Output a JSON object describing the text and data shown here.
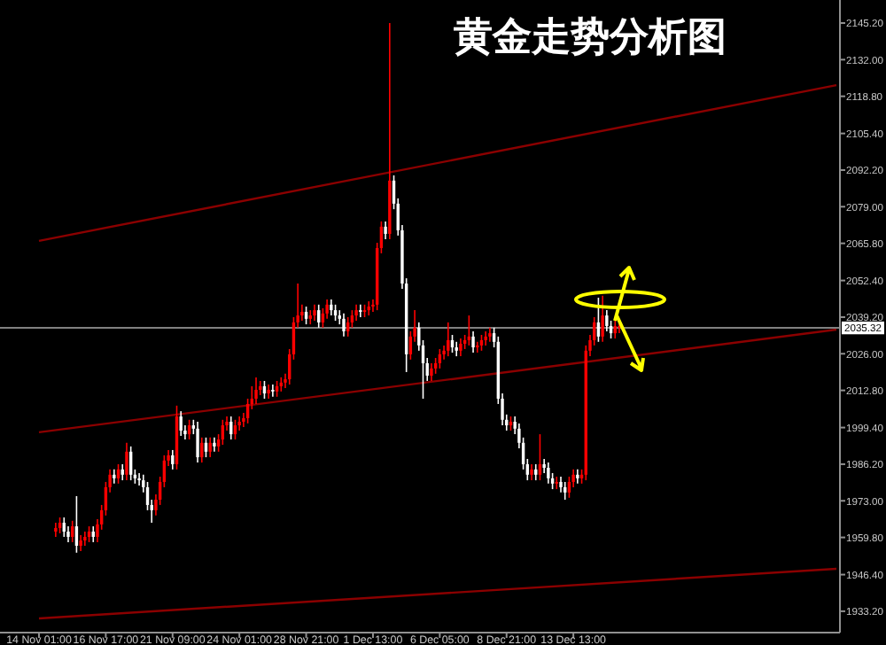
{
  "chart_data": {
    "type": "candlestick",
    "title": "黄金走势分析图",
    "categories": [
      "14 Nov 01:00",
      null,
      null,
      null,
      null,
      null,
      null,
      null,
      null,
      null,
      null,
      null,
      null,
      null,
      null,
      null,
      "16 Nov 17:00",
      null,
      null,
      null,
      null,
      null,
      null,
      null,
      null,
      null,
      null,
      null,
      null,
      null,
      null,
      null,
      "21 Nov 09:00",
      null,
      null,
      null,
      null,
      null,
      null,
      null,
      null,
      null,
      null,
      null,
      null,
      null,
      null,
      null,
      "24 Nov 01:00",
      null,
      null,
      null,
      null,
      null,
      null,
      null,
      null,
      null,
      null,
      null,
      null,
      null,
      null,
      null,
      "28 Nov 21:00",
      null,
      null,
      null,
      null,
      null,
      null,
      null,
      null,
      null,
      null,
      null,
      null,
      null,
      null,
      null,
      "1 Dec 13:00",
      null,
      null,
      null,
      null,
      null,
      null,
      null,
      null,
      null,
      null,
      null,
      null,
      null,
      null,
      null,
      "6 Dec 05:00",
      null,
      null,
      null,
      null,
      null,
      null,
      null,
      null,
      null,
      null,
      null,
      null,
      null,
      null,
      null,
      "8 Dec 21:00",
      null,
      null,
      null,
      null,
      null,
      null,
      null,
      null,
      null,
      null,
      null,
      null,
      null,
      null,
      null,
      "13 Dec 13:00",
      null,
      null,
      null,
      null,
      null,
      null,
      null,
      null,
      null,
      null,
      null,
      null,
      null,
      null,
      null,
      null,
      null,
      null,
      null,
      null,
      null,
      null,
      null,
      null,
      null,
      null,
      null,
      null,
      null,
      null,
      null,
      null,
      null,
      null,
      null,
      null,
      null,
      null,
      null,
      null,
      null,
      null,
      null,
      null,
      null,
      null,
      null,
      null,
      null,
      null,
      null,
      null,
      null,
      null,
      null,
      null,
      null,
      null,
      null,
      null,
      null,
      null,
      null
    ],
    "ohlc": [
      null,
      null,
      null,
      null,
      [
        1961.9,
        1965.1,
        1960.0,
        1963.2
      ],
      [
        1963.2,
        1967.0,
        1961.3,
        1965.1
      ],
      [
        1965.1,
        1967.0,
        1960.0,
        1961.9
      ],
      [
        1961.9,
        1963.8,
        1958.1,
        1960.0
      ],
      [
        1960.0,
        1965.8,
        1958.1,
        1963.8
      ],
      [
        1963.8,
        1974.7,
        1954.3,
        1956.8
      ],
      [
        1956.8,
        1960.6,
        1954.9,
        1958.7
      ],
      [
        1958.7,
        1961.9,
        1956.8,
        1960.0
      ],
      [
        1960.0,
        1963.8,
        1958.1,
        1961.9
      ],
      [
        1961.9,
        1963.8,
        1958.1,
        1960.0
      ],
      [
        1960.0,
        1966.4,
        1958.1,
        1964.5
      ],
      [
        1964.5,
        1971.5,
        1962.6,
        1969.6
      ],
      [
        1969.6,
        1979.8,
        1967.7,
        1977.9
      ],
      [
        1977.9,
        1984.3,
        1976.0,
        1982.4
      ],
      [
        1982.4,
        1984.3,
        1979.2,
        1981.1
      ],
      [
        1981.1,
        1986.2,
        1979.2,
        1984.3
      ],
      [
        1984.3,
        1986.2,
        1980.4,
        1982.4
      ],
      [
        1982.4,
        1993.9,
        1980.4,
        1990.7
      ],
      [
        1990.7,
        1992.6,
        1980.4,
        1982.4
      ],
      [
        1982.4,
        1984.3,
        1979.2,
        1981.1
      ],
      [
        1981.1,
        1983.0,
        1978.5,
        1980.4
      ],
      [
        1980.4,
        1982.4,
        1976.0,
        1977.9
      ],
      [
        1977.9,
        1979.8,
        1969.6,
        1971.5
      ],
      [
        1971.5,
        1973.4,
        1965.1,
        1969.6
      ],
      [
        1969.6,
        1975.3,
        1967.7,
        1973.4
      ],
      [
        1973.4,
        1981.7,
        1971.5,
        1979.8
      ],
      [
        1979.8,
        1989.4,
        1977.9,
        1987.5
      ],
      [
        1987.5,
        1991.3,
        1985.5,
        1989.4
      ],
      [
        1989.4,
        1991.3,
        1984.3,
        1986.2
      ],
      [
        1986.2,
        2007.3,
        1984.3,
        2003.4
      ],
      [
        2003.4,
        2005.3,
        1996.4,
        1998.3
      ],
      [
        1998.3,
        2000.2,
        1995.1,
        1997.0
      ],
      [
        1997.0,
        2002.2,
        1995.1,
        2000.2
      ],
      [
        2000.2,
        2002.2,
        1997.0,
        1999.0
      ],
      [
        1999.0,
        2001.5,
        1986.8,
        1988.7
      ],
      [
        1988.7,
        1995.8,
        1986.8,
        1993.9
      ],
      [
        1993.9,
        1995.8,
        1988.7,
        1990.7
      ],
      [
        1990.7,
        1995.8,
        1988.7,
        1993.9
      ],
      [
        1993.9,
        1995.8,
        1990.7,
        1992.6
      ],
      [
        1992.6,
        1997.0,
        1990.7,
        1995.1
      ],
      [
        1995.1,
        2002.2,
        1993.2,
        2000.2
      ],
      [
        2000.2,
        2003.4,
        1998.3,
        2001.5
      ],
      [
        2001.5,
        2003.4,
        1995.1,
        1997.0
      ],
      [
        1997.0,
        2002.2,
        1995.1,
        2000.2
      ],
      [
        2000.2,
        2003.4,
        1998.3,
        2001.5
      ],
      [
        2001.5,
        2004.7,
        1999.6,
        2002.8
      ],
      [
        2002.8,
        2009.8,
        2000.9,
        2007.9
      ],
      [
        2007.9,
        2014.3,
        2006.0,
        2009.8
      ],
      [
        2009.8,
        2017.5,
        2007.9,
        2013.0
      ],
      [
        2013.0,
        2016.2,
        2011.1,
        2014.3
      ],
      [
        2014.3,
        2016.2,
        2009.8,
        2011.7
      ],
      [
        2011.7,
        2014.9,
        2009.8,
        2013.0
      ],
      [
        2013.0,
        2014.9,
        2010.5,
        2012.4
      ],
      [
        2012.4,
        2016.2,
        2010.5,
        2014.3
      ],
      [
        2014.3,
        2017.5,
        2012.4,
        2015.6
      ],
      [
        2015.6,
        2018.8,
        2013.6,
        2016.8
      ],
      [
        2016.8,
        2027.7,
        2014.9,
        2025.8
      ],
      [
        2025.8,
        2039.2,
        2023.9,
        2037.3
      ],
      [
        2037.3,
        2051.3,
        2035.4,
        2039.8
      ],
      [
        2039.8,
        2043.7,
        2037.9,
        2041.1
      ],
      [
        2041.1,
        2043.0,
        2036.6,
        2038.6
      ],
      [
        2038.6,
        2041.7,
        2036.6,
        2039.8
      ],
      [
        2039.8,
        2043.7,
        2037.9,
        2041.7
      ],
      [
        2041.7,
        2043.7,
        2035.4,
        2037.3
      ],
      [
        2037.3,
        2042.4,
        2035.4,
        2040.5
      ],
      [
        2040.5,
        2045.6,
        2038.6,
        2043.7
      ],
      [
        2043.7,
        2045.6,
        2039.8,
        2041.7
      ],
      [
        2041.7,
        2043.7,
        2037.9,
        2039.8
      ],
      [
        2039.8,
        2041.7,
        2036.6,
        2038.6
      ],
      [
        2038.6,
        2040.5,
        2032.2,
        2034.1
      ],
      [
        2034.1,
        2039.2,
        2032.2,
        2037.3
      ],
      [
        2037.3,
        2041.7,
        2035.4,
        2039.8
      ],
      [
        2039.8,
        2043.7,
        2037.9,
        2041.7
      ],
      [
        2041.7,
        2043.7,
        2039.2,
        2041.1
      ],
      [
        2041.1,
        2043.7,
        2039.2,
        2041.7
      ],
      [
        2041.7,
        2044.9,
        2039.8,
        2043.0
      ],
      [
        2043.0,
        2045.6,
        2041.1,
        2043.7
      ],
      [
        2043.7,
        2066.0,
        2041.7,
        2064.1
      ],
      [
        2064.1,
        2073.7,
        2062.2,
        2071.8
      ],
      [
        2071.8,
        2073.7,
        2067.3,
        2069.2
      ],
      [
        2069.2,
        2145.2,
        2067.3,
        2088.4
      ],
      [
        2088.4,
        2090.3,
        2078.1,
        2080.1
      ],
      [
        2080.1,
        2082.0,
        2068.6,
        2070.5
      ],
      [
        2070.5,
        2072.4,
        2049.4,
        2051.3
      ],
      [
        2051.3,
        2053.2,
        2019.4,
        2025.8
      ],
      [
        2025.8,
        2034.1,
        2023.9,
        2032.2
      ],
      [
        2032.2,
        2041.7,
        2030.3,
        2035.4
      ],
      [
        2035.4,
        2037.3,
        2027.1,
        2029.0
      ],
      [
        2029.0,
        2030.9,
        2009.8,
        2022.6
      ],
      [
        2022.6,
        2024.5,
        2016.2,
        2018.1
      ],
      [
        2018.1,
        2022.6,
        2016.2,
        2020.7
      ],
      [
        2020.7,
        2024.5,
        2018.8,
        2022.6
      ],
      [
        2022.6,
        2027.7,
        2020.7,
        2025.8
      ],
      [
        2025.8,
        2029.0,
        2023.9,
        2027.1
      ],
      [
        2027.1,
        2037.3,
        2025.1,
        2030.9
      ],
      [
        2030.9,
        2032.8,
        2026.4,
        2028.3
      ],
      [
        2028.3,
        2030.3,
        2025.1,
        2027.1
      ],
      [
        2027.1,
        2031.5,
        2025.1,
        2029.6
      ],
      [
        2029.6,
        2032.8,
        2027.7,
        2030.9
      ],
      [
        2030.9,
        2039.8,
        2029.0,
        2032.2
      ],
      [
        2032.2,
        2034.1,
        2026.4,
        2028.3
      ],
      [
        2028.3,
        2030.3,
        2026.4,
        2029.0
      ],
      [
        2029.0,
        2032.8,
        2027.1,
        2030.9
      ],
      [
        2030.9,
        2034.1,
        2029.0,
        2032.2
      ],
      [
        2032.2,
        2035.4,
        2030.3,
        2033.4
      ],
      [
        2033.4,
        2035.4,
        2028.3,
        2030.3
      ],
      [
        2030.3,
        2032.2,
        2007.9,
        2009.8
      ],
      [
        2009.8,
        2011.7,
        2000.2,
        2002.2
      ],
      [
        2002.2,
        2004.1,
        1998.3,
        2000.2
      ],
      [
        2000.2,
        2003.4,
        1998.3,
        2001.5
      ],
      [
        2001.5,
        2003.4,
        1997.0,
        1999.0
      ],
      [
        1999.0,
        2000.9,
        1991.9,
        1993.9
      ],
      [
        1993.9,
        1995.8,
        1984.3,
        1986.2
      ],
      [
        1986.2,
        1988.1,
        1980.4,
        1982.4
      ],
      [
        1982.4,
        1986.2,
        1980.4,
        1984.3
      ],
      [
        1984.3,
        1986.2,
        1980.4,
        1982.4
      ],
      [
        1982.4,
        1997.0,
        1980.4,
        1986.2
      ],
      [
        1986.2,
        1988.1,
        1983.0,
        1984.9
      ],
      [
        1984.9,
        1986.8,
        1979.2,
        1981.1
      ],
      [
        1981.1,
        1983.0,
        1977.2,
        1979.2
      ],
      [
        1979.2,
        1981.7,
        1977.2,
        1979.8
      ],
      [
        1979.8,
        1981.7,
        1976.0,
        1977.9
      ],
      [
        1977.9,
        1979.8,
        1973.4,
        1976.0
      ],
      [
        1976.0,
        1981.7,
        1974.1,
        1979.8
      ],
      [
        1979.8,
        1984.3,
        1977.9,
        1982.4
      ],
      [
        1982.4,
        1984.3,
        1979.2,
        1981.1
      ],
      [
        1981.1,
        1984.3,
        1979.2,
        1982.4
      ],
      [
        1982.4,
        2029.0,
        1980.4,
        2027.1
      ],
      [
        2027.1,
        2032.8,
        2025.1,
        2030.9
      ],
      [
        2030.9,
        2039.2,
        2029.0,
        2037.3
      ],
      [
        2037.3,
        2046.2,
        2030.3,
        2032.2
      ],
      [
        2032.2,
        2046.9,
        2030.3,
        2039.8
      ],
      [
        2039.8,
        2041.7,
        2034.1,
        2036.0
      ],
      [
        2036.0,
        2037.9,
        2031.5,
        2033.4
      ],
      [
        2033.4,
        2037.9,
        2031.5,
        2036.0
      ],
      [
        2036.0,
        2037.9,
        2033.4,
        2035.3
      ],
      null,
      null,
      null,
      null,
      null,
      null,
      null,
      null,
      null,
      null,
      null,
      null,
      null,
      null,
      null,
      null,
      null,
      null,
      null,
      null,
      null,
      null,
      null,
      null,
      null,
      null,
      null,
      null,
      null,
      null,
      null,
      null,
      null,
      null,
      null,
      null,
      null,
      null,
      null,
      null,
      null,
      null,
      null,
      null,
      null,
      null,
      null,
      null,
      null,
      null,
      null,
      null
    ],
    "colors": [
      null,
      null,
      null,
      null,
      "#ff0000",
      "#ff0000",
      "#ffffff",
      "#ffffff",
      "#ff0000",
      "#ffffff",
      "#ff0000",
      "#ff0000",
      "#ff0000",
      "#ffffff",
      "#ff0000",
      "#ff0000",
      "#ff0000",
      "#ff0000",
      "#ffffff",
      "#ff0000",
      "#ffffff",
      "#ff0000",
      "#ffffff",
      "#ffffff",
      "#ffffff",
      "#ffffff",
      "#ffffff",
      "#ffffff",
      "#ff0000",
      "#ff0000",
      "#ff0000",
      "#ff0000",
      "#ffffff",
      "#ff0000",
      "#ffffff",
      "#ffffff",
      "#ff0000",
      "#ffffff",
      "#ffffff",
      "#ff0000",
      "#ffffff",
      "#ff0000",
      "#ffffff",
      "#ff0000",
      "#ff0000",
      "#ff0000",
      "#ffffff",
      "#ff0000",
      "#ff0000",
      "#ff0000",
      "#ff0000",
      "#ff0000",
      "#ff0000",
      "#ff0000",
      "#ffffff",
      "#ff0000",
      "#ffffff",
      "#ff0000",
      "#ff0000",
      "#ff0000",
      "#ff0000",
      "#ff0000",
      "#ff0000",
      "#ff0000",
      "#ffffff",
      "#ff0000",
      "#ff0000",
      "#ffffff",
      "#ff0000",
      "#ff0000",
      "#ffffff",
      "#ffffff",
      "#ffffff",
      "#ffffff",
      "#ff0000",
      "#ff0000",
      "#ff0000",
      "#ffffff",
      "#ff0000",
      "#ff0000",
      "#ff0000",
      "#ff0000",
      "#ff0000",
      "#ffffff",
      "#ff0000",
      "#ffffff",
      "#ffffff",
      "#ffffff",
      "#ffffff",
      "#ff0000",
      "#ff0000",
      "#ffffff",
      "#ffffff",
      "#ffffff",
      "#ff0000",
      "#ff0000",
      "#ff0000",
      "#ff0000",
      "#ff0000",
      "#ffffff",
      "#ffffff",
      "#ff0000",
      "#ff0000",
      "#ff0000",
      "#ffffff",
      "#ff0000",
      "#ff0000",
      "#ff0000",
      "#ff0000",
      "#ffffff",
      "#ffffff",
      "#ffffff",
      "#ffffff",
      "#ff0000",
      "#ffffff",
      "#ffffff",
      "#ffffff",
      "#ffffff",
      "#ff0000",
      "#ffffff",
      "#ff0000",
      "#ffffff",
      "#ffffff",
      "#ffffff",
      "#ff0000",
      "#ffffff",
      "#ffffff",
      "#ff0000",
      "#ff0000",
      "#ffffff",
      "#ff0000",
      "#ff0000",
      "#ff0000",
      "#ff0000",
      "#ffffff",
      "#ff0000",
      "#ffffff",
      "#ffffff",
      "#ff0000",
      "#ff0000",
      null,
      null,
      null,
      null,
      null,
      null,
      null,
      null,
      null,
      null,
      null,
      null,
      null,
      null,
      null,
      null,
      null,
      null,
      null,
      null,
      null,
      null,
      null,
      null,
      null,
      null,
      null,
      null,
      null,
      null,
      null,
      null,
      null,
      null,
      null,
      null,
      null,
      null,
      null,
      null,
      null,
      null,
      null,
      null,
      null,
      null,
      null,
      null,
      null,
      null,
      null,
      null
    ],
    "series": [
      {
        "type": "line",
        "color": "#8b0000",
        "values": [
          2066.7,
          null,
          null,
          null,
          null,
          null,
          null,
          null,
          null,
          null,
          null,
          null,
          null,
          null,
          null,
          null,
          null,
          null,
          null,
          null,
          null,
          null,
          null,
          null,
          null,
          null,
          null,
          null,
          null,
          null,
          null,
          null,
          null,
          null,
          null,
          null,
          null,
          null,
          null,
          null,
          null,
          null,
          null,
          null,
          null,
          null,
          null,
          null,
          null,
          null,
          null,
          null,
          null,
          null,
          null,
          null,
          null,
          null,
          null,
          null,
          null,
          null,
          null,
          null,
          null,
          null,
          null,
          null,
          null,
          null,
          null,
          null,
          null,
          null,
          null,
          null,
          null,
          null,
          null,
          null,
          null,
          null,
          null,
          null,
          null,
          null,
          null,
          null,
          null,
          null,
          null,
          null,
          null,
          null,
          null,
          null,
          null,
          null,
          null,
          null,
          null,
          null,
          null,
          null,
          null,
          null,
          null,
          null,
          null,
          null,
          null,
          null,
          null,
          null,
          null,
          null,
          null,
          null,
          null,
          null,
          null,
          null,
          null,
          null,
          null,
          null,
          null,
          null,
          null,
          null,
          null,
          null,
          null,
          null,
          null,
          null,
          null,
          null,
          null,
          null,
          null,
          null,
          null,
          null,
          null,
          null,
          null,
          null,
          null,
          null,
          null,
          null,
          null,
          null,
          null,
          null,
          null,
          null,
          null,
          null,
          null,
          null,
          null,
          null,
          null,
          null,
          null,
          null,
          null,
          null,
          null,
          null,
          null,
          null,
          null,
          null,
          null,
          null,
          null,
          null,
          null,
          null,
          null,
          null,
          null,
          null,
          null,
          null,
          null,
          null,
          null,
          2122.8
        ]
      },
      {
        "type": "line",
        "color": "#8b0000",
        "values": [
          1997.7,
          null,
          null,
          null,
          null,
          null,
          null,
          null,
          null,
          null,
          null,
          null,
          null,
          null,
          null,
          null,
          null,
          null,
          null,
          null,
          null,
          null,
          null,
          null,
          null,
          null,
          null,
          null,
          null,
          null,
          null,
          null,
          null,
          null,
          null,
          null,
          null,
          null,
          null,
          null,
          null,
          null,
          null,
          null,
          null,
          null,
          null,
          null,
          null,
          null,
          null,
          null,
          null,
          null,
          null,
          null,
          null,
          null,
          null,
          null,
          null,
          null,
          null,
          null,
          null,
          null,
          null,
          null,
          null,
          null,
          null,
          null,
          null,
          null,
          null,
          null,
          null,
          null,
          null,
          null,
          null,
          null,
          null,
          null,
          null,
          null,
          null,
          null,
          null,
          null,
          null,
          null,
          null,
          null,
          null,
          null,
          null,
          null,
          null,
          null,
          null,
          null,
          null,
          null,
          null,
          null,
          null,
          null,
          null,
          null,
          null,
          null,
          null,
          null,
          null,
          null,
          null,
          null,
          null,
          null,
          null,
          null,
          null,
          null,
          null,
          null,
          null,
          null,
          null,
          null,
          null,
          null,
          null,
          null,
          null,
          null,
          null,
          null,
          null,
          null,
          null,
          null,
          null,
          null,
          null,
          null,
          null,
          null,
          null,
          null,
          null,
          null,
          null,
          null,
          null,
          null,
          null,
          null,
          null,
          null,
          null,
          null,
          null,
          null,
          null,
          null,
          null,
          null,
          null,
          null,
          null,
          null,
          null,
          null,
          null,
          null,
          null,
          null,
          null,
          null,
          null,
          null,
          null,
          null,
          null,
          null,
          null,
          null,
          null,
          null,
          null,
          2034.7
        ]
      },
      {
        "type": "line",
        "color": "#8b0000",
        "values": [
          1930.6,
          null,
          null,
          null,
          null,
          null,
          null,
          null,
          null,
          null,
          null,
          null,
          null,
          null,
          null,
          null,
          null,
          null,
          null,
          null,
          null,
          null,
          null,
          null,
          null,
          null,
          null,
          null,
          null,
          null,
          null,
          null,
          null,
          null,
          null,
          null,
          null,
          null,
          null,
          null,
          null,
          null,
          null,
          null,
          null,
          null,
          null,
          null,
          null,
          null,
          null,
          null,
          null,
          null,
          null,
          null,
          null,
          null,
          null,
          null,
          null,
          null,
          null,
          null,
          null,
          null,
          null,
          null,
          null,
          null,
          null,
          null,
          null,
          null,
          null,
          null,
          null,
          null,
          null,
          null,
          null,
          null,
          null,
          null,
          null,
          null,
          null,
          null,
          null,
          null,
          null,
          null,
          null,
          null,
          null,
          null,
          null,
          null,
          null,
          null,
          null,
          null,
          null,
          null,
          null,
          null,
          null,
          null,
          null,
          null,
          null,
          null,
          null,
          null,
          null,
          null,
          null,
          null,
          null,
          null,
          null,
          null,
          null,
          null,
          null,
          null,
          null,
          null,
          null,
          null,
          null,
          null,
          null,
          null,
          null,
          null,
          null,
          null,
          null,
          null,
          null,
          null,
          null,
          null,
          null,
          null,
          null,
          null,
          null,
          null,
          null,
          null,
          null,
          null,
          null,
          null,
          null,
          null,
          null,
          null,
          null,
          null,
          null,
          null,
          null,
          null,
          null,
          null,
          null,
          null,
          null,
          null,
          null,
          null,
          null,
          null,
          null,
          null,
          null,
          null,
          null,
          null,
          null,
          null,
          null,
          null,
          null,
          null,
          null,
          null,
          null,
          1948.5
        ]
      }
    ],
    "ref_lines": [
      {
        "axis": "y",
        "value": 2035.32,
        "label": "2035.32",
        "color": "#808080"
      }
    ],
    "ylim": [
      1925.5,
      2153.5
    ],
    "yticks": [
      {
        "value": 2145.2,
        "label": "2145.20"
      },
      {
        "value": 2132.0,
        "label": "2132.00"
      },
      {
        "value": 2118.8,
        "label": "2118.80"
      },
      {
        "value": 2105.4,
        "label": "2105.40"
      },
      {
        "value": 2092.2,
        "label": "2092.20"
      },
      {
        "value": 2079.0,
        "label": "2079.00"
      },
      {
        "value": 2065.8,
        "label": "2065.80"
      },
      {
        "value": 2052.4,
        "label": "2052.40"
      },
      {
        "value": 2039.2,
        "label": "2039.20"
      },
      {
        "value": 2026.0,
        "label": "2026.00"
      },
      {
        "value": 2012.8,
        "label": "2012.80"
      },
      {
        "value": 1999.4,
        "label": "1999.40"
      },
      {
        "value": 1986.2,
        "label": "1986.20"
      },
      {
        "value": 1973.0,
        "label": "1973.00"
      },
      {
        "value": 1959.8,
        "label": "1959.80"
      },
      {
        "value": 1946.4,
        "label": "1946.40"
      },
      {
        "value": 1933.2,
        "label": "1933.20"
      }
    ]
  }
}
